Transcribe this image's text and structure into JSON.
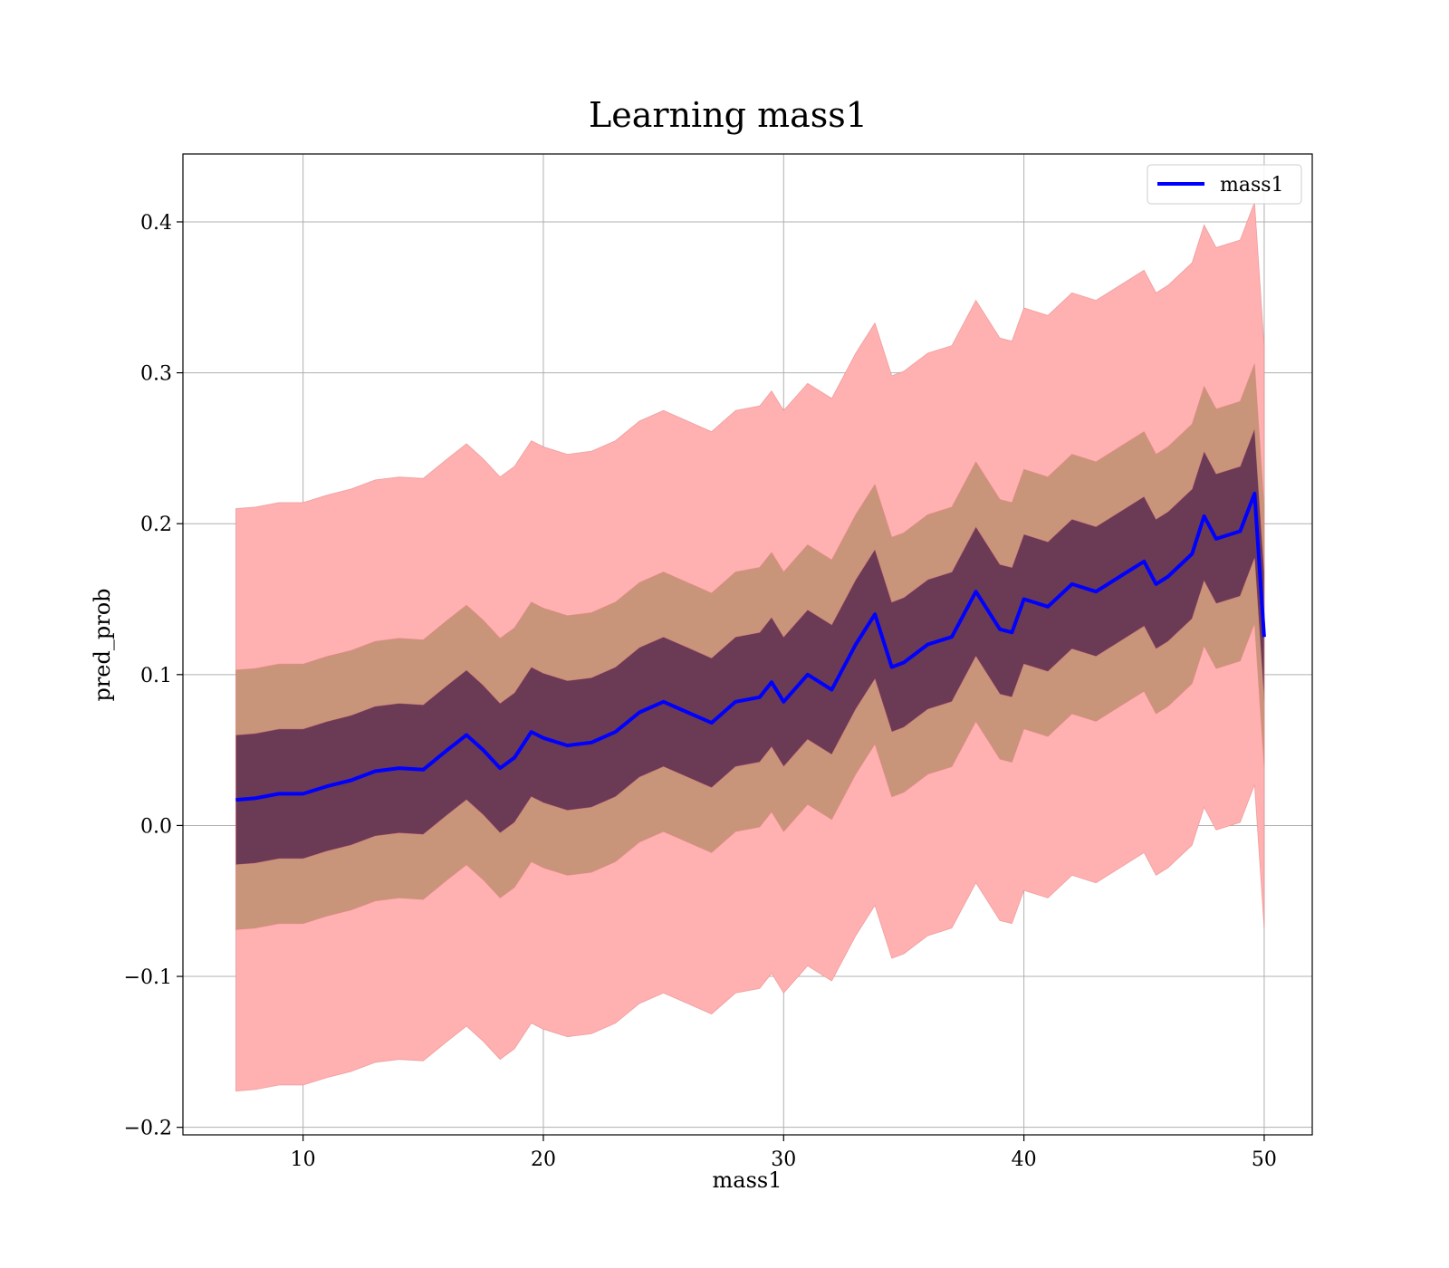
{
  "chart_data": {
    "type": "line",
    "title": "Learning mass1",
    "xlabel": "mass1",
    "ylabel": "pred_prob",
    "xlim": [
      5,
      52
    ],
    "ylim": [
      -0.205,
      0.445
    ],
    "xticks": [
      10,
      20,
      30,
      40,
      50
    ],
    "yticks": [
      -0.2,
      -0.1,
      0.0,
      0.1,
      0.2,
      0.3,
      0.4
    ],
    "xtick_labels": [
      "10",
      "20",
      "30",
      "40",
      "50"
    ],
    "ytick_labels": [
      "−0.2",
      "−0.1",
      "0.0",
      "0.1",
      "0.2",
      "0.3",
      "0.4"
    ],
    "grid": true,
    "legend": {
      "placement": "top-right",
      "entries": [
        "mass1"
      ]
    },
    "x": [
      7.2,
      8,
      9,
      10,
      11,
      12,
      13,
      14,
      15,
      16,
      16.8,
      17.5,
      18.2,
      18.8,
      19.5,
      20,
      21,
      22,
      23,
      24,
      25,
      26,
      27,
      28,
      29,
      29.5,
      30,
      31,
      32,
      33,
      33.8,
      34.5,
      35,
      36,
      37,
      38,
      39,
      39.5,
      40,
      41,
      42,
      43,
      44,
      45,
      45.5,
      46,
      47,
      47.5,
      48,
      49,
      49.6,
      50
    ],
    "series": [
      {
        "name": "mass1",
        "color": "#0000ff",
        "values": [
          0.017,
          0.018,
          0.021,
          0.021,
          0.026,
          0.03,
          0.036,
          0.038,
          0.037,
          0.05,
          0.06,
          0.05,
          0.038,
          0.045,
          0.062,
          0.058,
          0.053,
          0.055,
          0.062,
          0.075,
          0.082,
          0.075,
          0.068,
          0.082,
          0.085,
          0.095,
          0.082,
          0.1,
          0.09,
          0.12,
          0.14,
          0.105,
          0.108,
          0.12,
          0.125,
          0.155,
          0.13,
          0.128,
          0.15,
          0.145,
          0.16,
          0.155,
          0.165,
          0.175,
          0.16,
          0.165,
          0.18,
          0.205,
          0.19,
          0.195,
          0.22,
          0.125
        ],
        "band_halfwidths": [
          0.043,
          0.086,
          0.193
        ],
        "band_colors": [
          "#6b3a55",
          "#c8957a",
          "#ffb0b0"
        ]
      }
    ]
  }
}
